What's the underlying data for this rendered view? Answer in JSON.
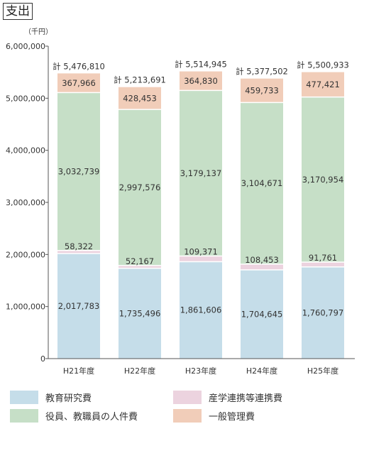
{
  "title": "支出",
  "chart_data": {
    "type": "bar",
    "stacked": true,
    "unit_label": "（千円）",
    "categories": [
      "H21年度",
      "H22年度",
      "H23年度",
      "H24年度",
      "H25年度"
    ],
    "yticks": [
      "0",
      "1,000,000",
      "2,000,000",
      "3,000,000",
      "4,000,000",
      "5,000,000",
      "6,000,000"
    ],
    "ylim": [
      0,
      6000000
    ],
    "grid": false,
    "series": [
      {
        "name": "教育研究費",
        "color": "#c5dde9",
        "values": [
          2017783,
          1735496,
          1861606,
          1704645,
          1760797
        ],
        "labels": [
          "2,017,783",
          "1,735,496",
          "1,861,606",
          "1,704,645",
          "1,760,797"
        ]
      },
      {
        "name": "産学連携等連携費",
        "color": "#ecd3df",
        "values": [
          58322,
          52167,
          109371,
          108453,
          91761
        ],
        "labels": [
          "58,322",
          "52,167",
          "109,371",
          "108,453",
          "91,761"
        ]
      },
      {
        "name": "役員、教職員の人件費",
        "color": "#c6dfc7",
        "values": [
          3032739,
          2997576,
          3179137,
          3104671,
          3170954
        ],
        "labels": [
          "3,032,739",
          "2,997,576",
          "3,179,137",
          "3,104,671",
          "3,170,954"
        ]
      },
      {
        "name": "一般管理費",
        "color": "#f1cdb9",
        "values": [
          367966,
          428453,
          364830,
          459733,
          477421
        ],
        "labels": [
          "367,966",
          "428,453",
          "364,830",
          "459,733",
          "477,421"
        ]
      }
    ],
    "totals": [
      "計 5,476,810",
      "計 5,213,691",
      "計 5,514,945",
      "計 5,377,502",
      "計 5,500,933"
    ],
    "legend": [
      {
        "label": "教育研究費",
        "color": "#c5dde9"
      },
      {
        "label": "産学連携等連携費",
        "color": "#ecd3df"
      },
      {
        "label": "役員、教職員の人件費",
        "color": "#c6dfc7"
      },
      {
        "label": "一般管理費",
        "color": "#f1cdb9"
      }
    ]
  }
}
